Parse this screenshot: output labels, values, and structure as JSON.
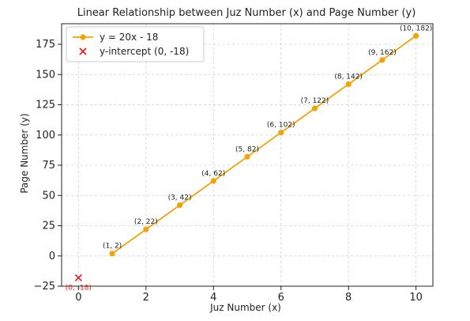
{
  "chart_data": {
    "type": "line",
    "title": "Linear Relationship between Juz Number (x) and Page Number (y)",
    "xlabel": "Juz Number (x)",
    "ylabel": "Page Number (y)",
    "xlim": [
      -0.5,
      10.5
    ],
    "ylim": [
      -25,
      192
    ],
    "xticks": [
      0,
      2,
      4,
      6,
      8,
      10
    ],
    "yticks": [
      -25,
      0,
      25,
      50,
      75,
      100,
      125,
      150,
      175
    ],
    "grid": true,
    "legend_position": "top-left",
    "series": [
      {
        "name": "y = 20x - 18",
        "color": "#f0a30a",
        "marker": "circle",
        "x": [
          1,
          2,
          3,
          4,
          5,
          6,
          7,
          8,
          9,
          10
        ],
        "y": [
          2,
          22,
          42,
          62,
          82,
          102,
          122,
          142,
          162,
          182
        ],
        "labels": [
          "(1, 2)",
          "(2, 22)",
          "(3, 42)",
          "(4, 62)",
          "(5, 82)",
          "(6, 102)",
          "(7, 122)",
          "(8, 142)",
          "(9, 162)",
          "(10, 182)"
        ]
      }
    ],
    "intercept": {
      "name": "y-intercept (0, -18)",
      "color": "#e8181c",
      "marker": "x",
      "x": 0,
      "y": -18,
      "label": "(0, -18)"
    }
  }
}
